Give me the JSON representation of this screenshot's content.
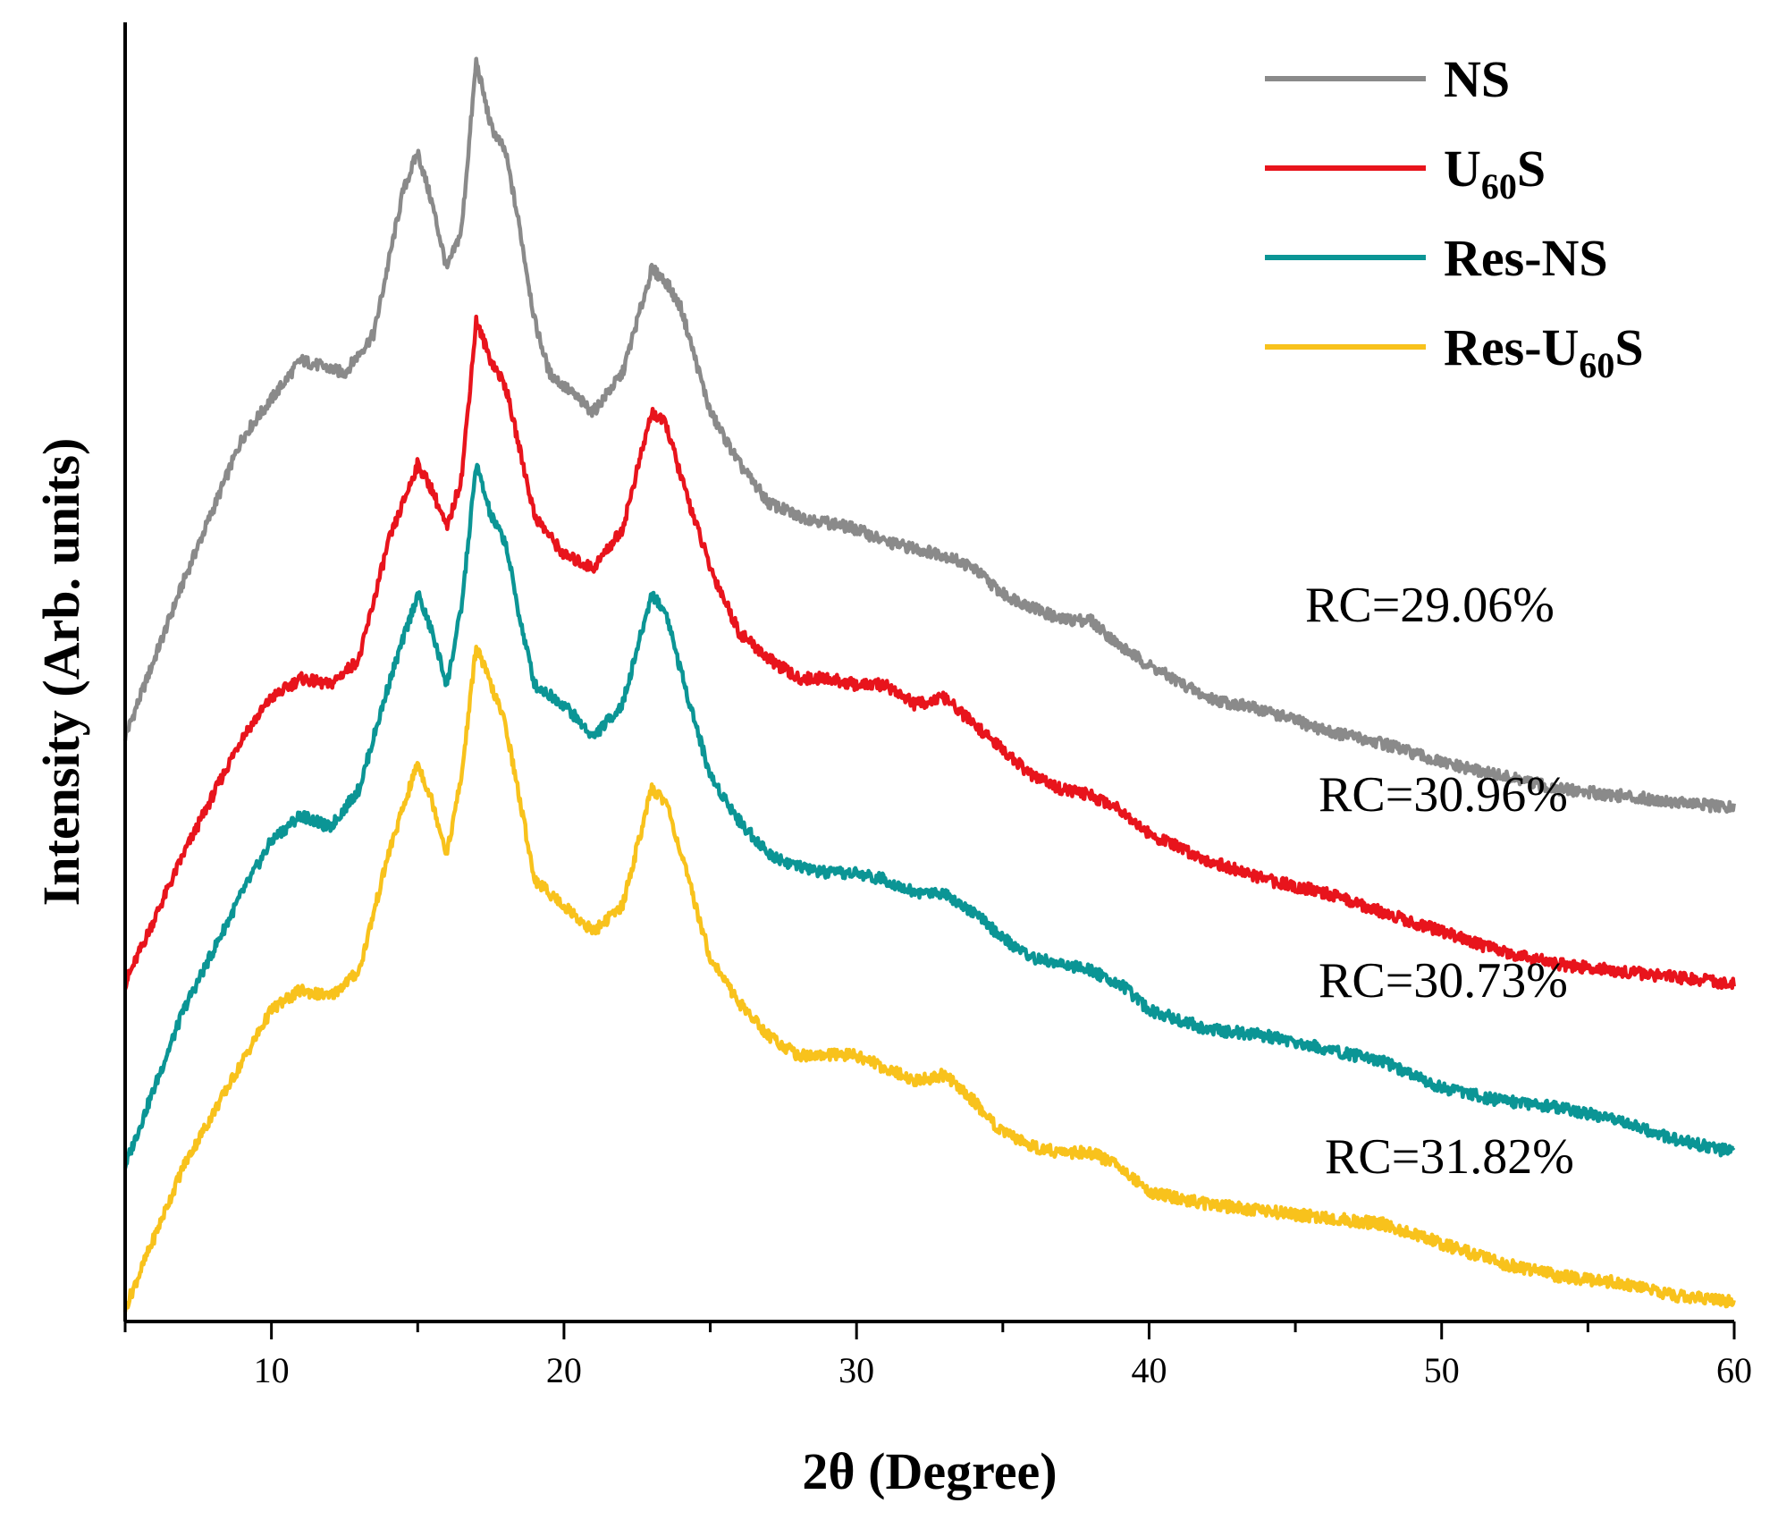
{
  "chart_data": {
    "type": "line",
    "title": "",
    "xlabel": "2θ (Degree)",
    "ylabel": "Intensity (Arb. units)",
    "xlim": [
      5,
      60
    ],
    "ylim": [
      0,
      100
    ],
    "x_ticks": [
      10,
      20,
      30,
      40,
      50,
      60
    ],
    "x_tick_labels": [
      "10",
      "20",
      "30",
      "40",
      "50",
      "60"
    ],
    "grid": false,
    "legend_position": "top-right",
    "series": [
      {
        "name": "NS",
        "name_main": "NS",
        "name_sub": "",
        "name_tail": "",
        "color": "#8a8a8a",
        "rc_label": "RC=29.06%",
        "points": [
          [
            5,
            45
          ],
          [
            7,
            57
          ],
          [
            9,
            68
          ],
          [
            10,
            71
          ],
          [
            11,
            74
          ],
          [
            12.5,
            73
          ],
          [
            13.5,
            76
          ],
          [
            14.5,
            87
          ],
          [
            15,
            90
          ],
          [
            15.5,
            86
          ],
          [
            16,
            81
          ],
          [
            16.5,
            84
          ],
          [
            17,
            97
          ],
          [
            17.5,
            92
          ],
          [
            18,
            90
          ],
          [
            18.5,
            84
          ],
          [
            19,
            77
          ],
          [
            19.5,
            73
          ],
          [
            20,
            72
          ],
          [
            21,
            70
          ],
          [
            22,
            73
          ],
          [
            23,
            81
          ],
          [
            23.5,
            80
          ],
          [
            24,
            78
          ],
          [
            25,
            70
          ],
          [
            26,
            66
          ],
          [
            27,
            63
          ],
          [
            28,
            62
          ],
          [
            29,
            61.5
          ],
          [
            30,
            61
          ],
          [
            31,
            60
          ],
          [
            32,
            59.5
          ],
          [
            33,
            59
          ],
          [
            34,
            58
          ],
          [
            35,
            56
          ],
          [
            36,
            55
          ],
          [
            37,
            54
          ],
          [
            38,
            54
          ],
          [
            39,
            52
          ],
          [
            40,
            50.5
          ],
          [
            42,
            48
          ],
          [
            44,
            47
          ],
          [
            46,
            45.5
          ],
          [
            48,
            44.5
          ],
          [
            50,
            43
          ],
          [
            52,
            42
          ],
          [
            54,
            41
          ],
          [
            56,
            40.5
          ],
          [
            58,
            40
          ],
          [
            60,
            39.5
          ]
        ]
      },
      {
        "name": "U60S",
        "name_main": "U",
        "name_sub": "60",
        "name_tail": "S",
        "color": "#e8141c",
        "rc_label": "RC=30.96%",
        "points": [
          [
            5,
            26
          ],
          [
            7,
            36
          ],
          [
            9,
            45
          ],
          [
            10,
            48
          ],
          [
            11,
            49.5
          ],
          [
            12,
            49
          ],
          [
            13,
            51
          ],
          [
            14,
            60
          ],
          [
            15,
            66
          ],
          [
            15.5,
            64
          ],
          [
            16,
            61
          ],
          [
            16.5,
            65
          ],
          [
            17,
            77
          ],
          [
            17.5,
            74
          ],
          [
            18,
            72
          ],
          [
            18.5,
            67
          ],
          [
            19,
            62
          ],
          [
            20,
            59
          ],
          [
            21,
            58
          ],
          [
            22,
            61
          ],
          [
            23,
            70
          ],
          [
            23.5,
            69
          ],
          [
            24,
            65
          ],
          [
            25,
            58
          ],
          [
            26,
            53
          ],
          [
            27,
            51
          ],
          [
            28,
            49.5
          ],
          [
            29,
            49.5
          ],
          [
            30,
            49
          ],
          [
            31,
            49
          ],
          [
            32,
            47.5
          ],
          [
            33,
            48
          ],
          [
            34,
            46
          ],
          [
            35,
            44
          ],
          [
            36,
            42
          ],
          [
            37,
            41
          ],
          [
            38,
            40.5
          ],
          [
            39,
            39.5
          ],
          [
            40,
            37.5
          ],
          [
            42,
            35.5
          ],
          [
            44,
            34
          ],
          [
            46,
            33
          ],
          [
            48,
            31.5
          ],
          [
            50,
            30
          ],
          [
            52,
            28.5
          ],
          [
            54,
            27.5
          ],
          [
            56,
            27
          ],
          [
            58,
            26.5
          ],
          [
            60,
            26
          ]
        ]
      },
      {
        "name": "Res-NS",
        "name_main": "Res-NS",
        "name_sub": "",
        "name_tail": "",
        "color": "#0b9595",
        "rc_label": "RC=30.73%",
        "points": [
          [
            5,
            12
          ],
          [
            7,
            24
          ],
          [
            9,
            33
          ],
          [
            10,
            37
          ],
          [
            11,
            39
          ],
          [
            12,
            38
          ],
          [
            13,
            41
          ],
          [
            14,
            49
          ],
          [
            15,
            56
          ],
          [
            15.5,
            53
          ],
          [
            16,
            49
          ],
          [
            16.5,
            55
          ],
          [
            17,
            66
          ],
          [
            17.5,
            62
          ],
          [
            18,
            60
          ],
          [
            18.5,
            54
          ],
          [
            19,
            49
          ],
          [
            20,
            47.5
          ],
          [
            21,
            45
          ],
          [
            22,
            47.5
          ],
          [
            23,
            56
          ],
          [
            23.5,
            54.5
          ],
          [
            24,
            50
          ],
          [
            25,
            42
          ],
          [
            26,
            38.5
          ],
          [
            27,
            36
          ],
          [
            28,
            35
          ],
          [
            29,
            34.5
          ],
          [
            30,
            34.5
          ],
          [
            31,
            34
          ],
          [
            32,
            33
          ],
          [
            33,
            33
          ],
          [
            34,
            31.5
          ],
          [
            35,
            29.5
          ],
          [
            36,
            28
          ],
          [
            37,
            27.5
          ],
          [
            38,
            27
          ],
          [
            39,
            26
          ],
          [
            40,
            24
          ],
          [
            42,
            22.5
          ],
          [
            44,
            22
          ],
          [
            46,
            21
          ],
          [
            48,
            20
          ],
          [
            50,
            18
          ],
          [
            52,
            17
          ],
          [
            54,
            16.5
          ],
          [
            56,
            15.5
          ],
          [
            58,
            14
          ],
          [
            60,
            13
          ]
        ]
      },
      {
        "name": "Res-U60S",
        "name_main": "Res-U",
        "name_sub": "60",
        "name_tail": "S",
        "color": "#f8c21c",
        "rc_label": "RC=31.82%",
        "points": [
          [
            5,
            1
          ],
          [
            7,
            12
          ],
          [
            9,
            20
          ],
          [
            10,
            24
          ],
          [
            11,
            25.5
          ],
          [
            12,
            25
          ],
          [
            13,
            27
          ],
          [
            14,
            36
          ],
          [
            15,
            43
          ],
          [
            15.5,
            40
          ],
          [
            16,
            36
          ],
          [
            16.5,
            42
          ],
          [
            17,
            52
          ],
          [
            17.5,
            49
          ],
          [
            18,
            46
          ],
          [
            18.5,
            40
          ],
          [
            19,
            34
          ],
          [
            20,
            32
          ],
          [
            21,
            30
          ],
          [
            22,
            32
          ],
          [
            23,
            41
          ],
          [
            23.5,
            40
          ],
          [
            24,
            36
          ],
          [
            25,
            28
          ],
          [
            26,
            24.5
          ],
          [
            27,
            22
          ],
          [
            28,
            20.5
          ],
          [
            29,
            20.5
          ],
          [
            30,
            20.5
          ],
          [
            31,
            19.5
          ],
          [
            32,
            18.5
          ],
          [
            33,
            19
          ],
          [
            34,
            17
          ],
          [
            35,
            14.5
          ],
          [
            36,
            13.5
          ],
          [
            37,
            13
          ],
          [
            38,
            13
          ],
          [
            39,
            12
          ],
          [
            40,
            10
          ],
          [
            42,
            9
          ],
          [
            44,
            8.5
          ],
          [
            46,
            8
          ],
          [
            48,
            7.5
          ],
          [
            50,
            6
          ],
          [
            52,
            4.5
          ],
          [
            54,
            3.5
          ],
          [
            56,
            3
          ],
          [
            58,
            2
          ],
          [
            60,
            1.5
          ]
        ]
      }
    ]
  }
}
